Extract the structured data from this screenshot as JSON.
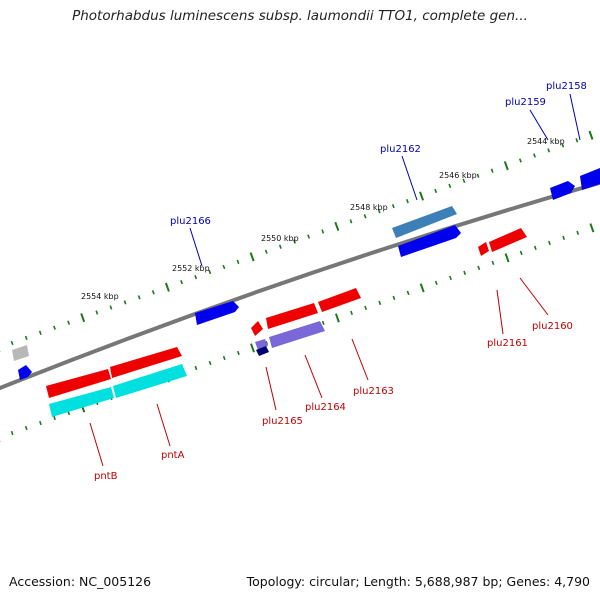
{
  "title": "Photorhabdus luminescens subsp. laumondii TTO1, complete gen...",
  "footer": {
    "accession": "Accession: NC_005126",
    "summary": "Topology: circular; Length: 5,688,987 bp; Genes: 4,790"
  },
  "colors": {
    "backbone": "#8a8a8a",
    "tick": "#1a7a1a",
    "forward_gene": "#0000ee",
    "reverse_gene": "#ee0000",
    "forward_label": "#0000b0",
    "reverse_label": "#c00000",
    "cds_cyan": "#00e0e0",
    "cds_steelblue": "#3d80b8",
    "cds_lavender": "#7b68d8",
    "cds_gray": "#b8b8b8",
    "cds_navy": "#000070"
  },
  "ticks": [
    "2544 kbp",
    "2546 kbp",
    "2548 kbp",
    "2550 kbp",
    "2552 kbp",
    "2554 kbp"
  ],
  "gene_labels": {
    "forward": [
      "plu2158",
      "plu2159",
      "plu2162",
      "plu2166"
    ],
    "reverse": [
      "plu2160",
      "plu2161",
      "plu2163",
      "plu2164",
      "plu2165",
      "pntA",
      "pntB"
    ]
  }
}
